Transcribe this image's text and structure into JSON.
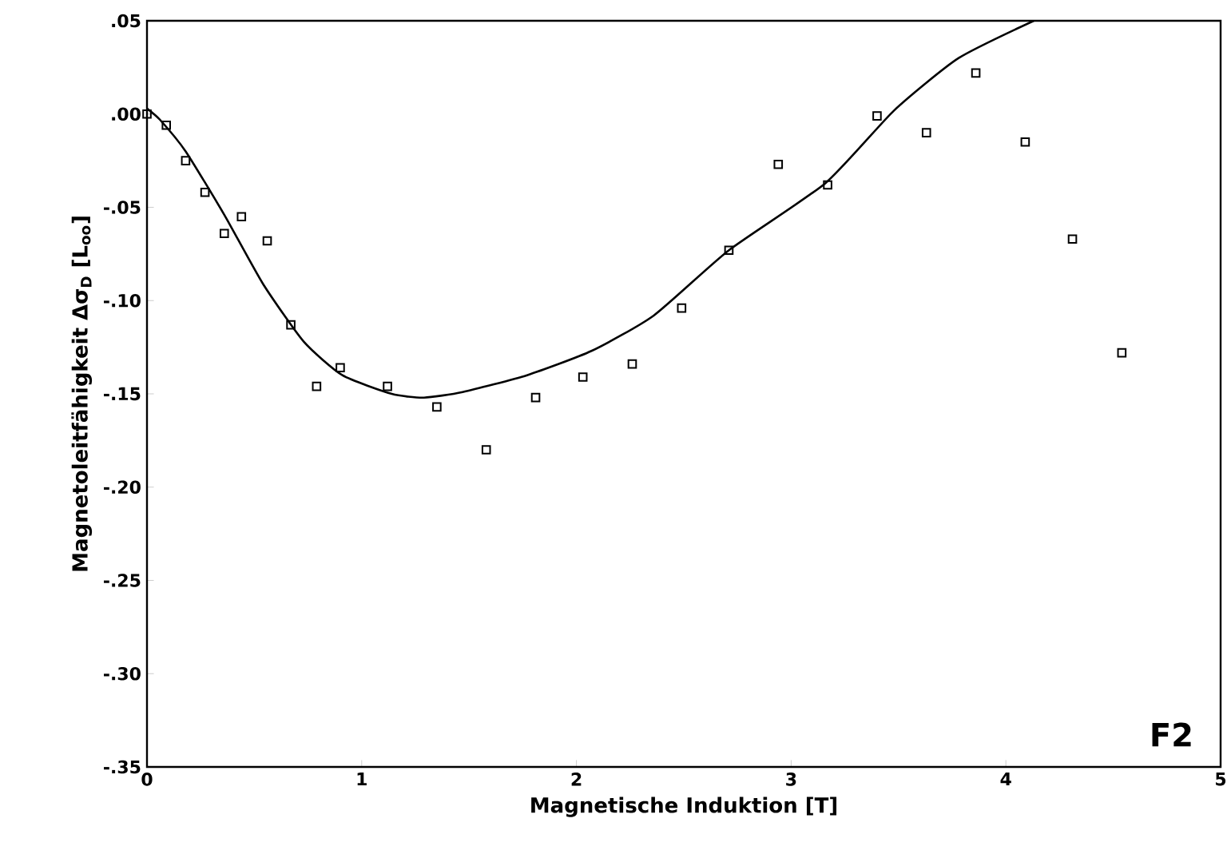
{
  "chart_data": {
    "type": "scatter",
    "xlabel": "Magnetische Induktion [T]",
    "ylabel": "Magnetoleitfähigkeit Δσ$_{D}$ [L$_{oo}$]",
    "annotations": [
      "F2"
    ],
    "xlim": [
      0,
      5
    ],
    "ylim": [
      -0.35,
      0.05
    ],
    "xticks": [
      0,
      1,
      2,
      3,
      4,
      5
    ],
    "yticks": [
      {
        "value": -0.35,
        "label": "-.35"
      },
      {
        "value": -0.3,
        "label": "-.30"
      },
      {
        "value": -0.25,
        "label": "-.25"
      },
      {
        "value": -0.2,
        "label": "-.20"
      },
      {
        "value": -0.15,
        "label": "-.15"
      },
      {
        "value": -0.1,
        "label": "-.10"
      },
      {
        "value": -0.05,
        "label": "-.05"
      },
      {
        "value": 0,
        "label": ".00"
      },
      {
        "value": 0.05,
        "label": ".05"
      }
    ],
    "grid": false,
    "series": [
      {
        "marker": "square",
        "color": "#000000",
        "x": [
          0,
          0.09,
          0.18,
          0.27,
          0.36,
          0.44,
          0.56,
          0.67,
          0.79,
          0.9,
          1.12,
          1.35,
          1.58,
          1.81,
          2.03,
          2.26,
          2.49,
          2.71,
          2.94,
          3.17,
          3.4,
          3.63,
          3.86,
          4.09,
          4.31,
          4.54
        ],
        "values": [
          0,
          -0.006,
          -0.025,
          -0.042,
          -0.064,
          -0.055,
          -0.068,
          -0.113,
          -0.146,
          -0.136,
          -0.146,
          -0.157,
          -0.18,
          -0.152,
          -0.141,
          -0.134,
          -0.104,
          -0.073,
          -0.027,
          -0.038,
          -0.001,
          -0.01,
          0.022,
          -0.015,
          -0.067,
          -0.128
        ]
      },
      {
        "type": "line",
        "marker": "none",
        "line_style": "solid",
        "color": "#000000",
        "x": [
          0,
          0.06,
          0.18,
          0.36,
          0.54,
          0.73,
          0.91,
          1.14,
          1.29,
          1.47,
          1.77,
          2.07,
          2.36,
          2.71,
          3.16,
          3.48,
          3.78,
          4.13
        ],
        "values": [
          0.003,
          -0.003,
          -0.02,
          -0.054,
          -0.091,
          -0.122,
          -0.14,
          -0.15,
          -0.152,
          -0.149,
          -0.14,
          -0.127,
          -0.108,
          -0.073,
          -0.037,
          0.002,
          0.03,
          0.05
        ]
      }
    ]
  }
}
